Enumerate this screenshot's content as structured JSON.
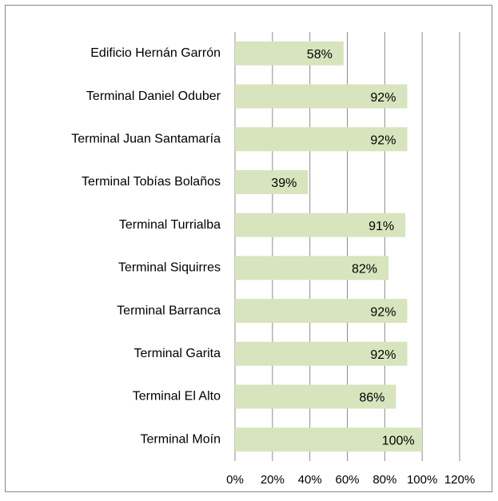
{
  "chart_data": {
    "type": "bar",
    "orientation": "horizontal",
    "categories": [
      "Edificio Hernán Garrón",
      "Terminal Daniel Oduber",
      "Terminal Juan Santamaría",
      "Terminal Tobías Bolaños",
      "Terminal Turrialba",
      "Terminal Siquirres",
      "Terminal Barranca",
      "Terminal Garita",
      "Terminal El Alto",
      "Terminal Moín"
    ],
    "values": [
      58,
      92,
      92,
      39,
      91,
      82,
      92,
      92,
      86,
      100
    ],
    "value_labels": [
      "58%",
      "92%",
      "92%",
      "39%",
      "91%",
      "82%",
      "92%",
      "92%",
      "86%",
      "100%"
    ],
    "color": "#d7e4bd",
    "xlim": [
      0,
      120
    ],
    "xticks": [
      {
        "value": 0,
        "label": "0%"
      },
      {
        "value": 20,
        "label": "20%"
      },
      {
        "value": 40,
        "label": "40%"
      },
      {
        "value": 60,
        "label": "60%"
      },
      {
        "value": 80,
        "label": "80%"
      },
      {
        "value": 100,
        "label": "100%"
      },
      {
        "value": 120,
        "label": "120%"
      }
    ],
    "grid": true
  }
}
